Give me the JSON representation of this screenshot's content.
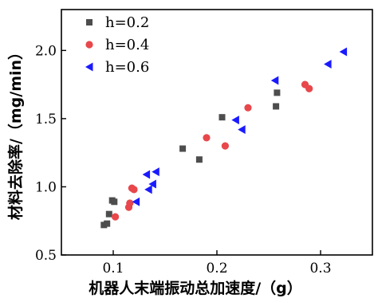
{
  "chart_data": {
    "type": "scatter",
    "xlabel": "机器人末端振动总加速度/（g）",
    "ylabel": "材料去除率/（mg/min）",
    "xlim": [
      0.05,
      0.35
    ],
    "ylim": [
      0.5,
      2.3
    ],
    "xticks": [
      0.1,
      0.2,
      0.3
    ],
    "yticks": [
      0.5,
      1.0,
      1.5,
      2.0
    ],
    "xtick_labels": [
      "0.1",
      "0.2",
      "0.3"
    ],
    "ytick_labels": [
      "0.5",
      "1.0",
      "1.5",
      "2.0"
    ],
    "legend_position": "top-left",
    "series": [
      {
        "name": "h=0.2",
        "marker": "square",
        "color": "#4d4d4d",
        "x": [
          0.091,
          0.094,
          0.096,
          0.099,
          0.101,
          0.167,
          0.183,
          0.205,
          0.257,
          0.258
        ],
        "y": [
          0.72,
          0.73,
          0.8,
          0.9,
          0.89,
          1.28,
          1.2,
          1.51,
          1.59,
          1.69
        ]
      },
      {
        "name": "h=0.4",
        "marker": "circle",
        "color": "#e8474b",
        "x": [
          0.102,
          0.115,
          0.116,
          0.118,
          0.12,
          0.19,
          0.208,
          0.23,
          0.285,
          0.289
        ],
        "y": [
          0.78,
          0.85,
          0.88,
          0.99,
          0.98,
          1.36,
          1.3,
          1.58,
          1.75,
          1.72
        ]
      },
      {
        "name": "h=0.6",
        "marker": "triangle-left",
        "color": "#1a1aff",
        "x": [
          0.122,
          0.132,
          0.134,
          0.138,
          0.141,
          0.218,
          0.224,
          0.256,
          0.307,
          0.322
        ],
        "y": [
          0.89,
          1.09,
          0.98,
          1.02,
          1.11,
          1.49,
          1.42,
          1.78,
          1.9,
          1.99
        ]
      }
    ]
  }
}
